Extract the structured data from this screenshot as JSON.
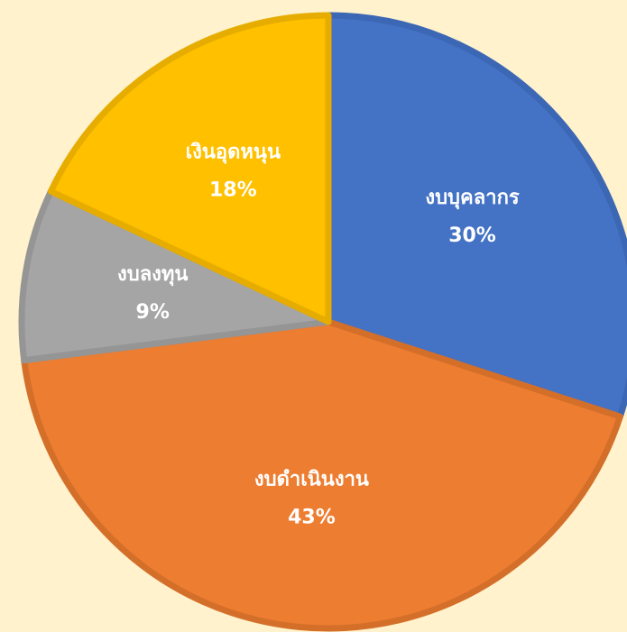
{
  "chart_data": {
    "type": "pie",
    "categories": [
      "งบบุคลากร",
      "งบดำเนินงาน",
      "งบลงทุน",
      "เงินอุดหนุน"
    ],
    "values": [
      30,
      43,
      9,
      18
    ],
    "value_labels": [
      "30%",
      "43%",
      "9%",
      "18%"
    ],
    "colors": [
      "#4472c4",
      "#ed7d31",
      "#a5a5a5",
      "#ffc000"
    ],
    "edge_colors": [
      "#3c67b4",
      "#d46f2a",
      "#959595",
      "#e6ad00"
    ]
  }
}
